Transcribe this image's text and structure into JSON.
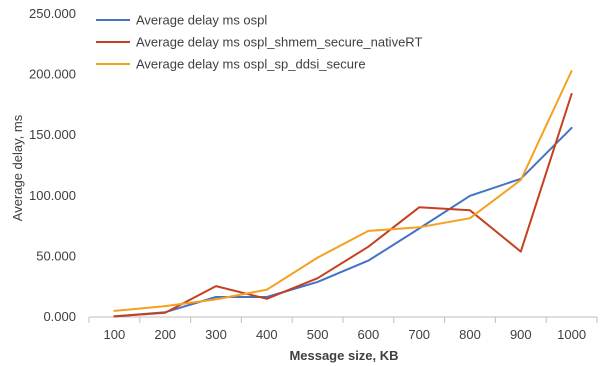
{
  "chart_data": {
    "type": "line",
    "title": "",
    "xlabel": "Message size, KB",
    "ylabel": "Average delay, ms",
    "categories": [
      "100",
      "200",
      "300",
      "400",
      "500",
      "600",
      "700",
      "800",
      "900",
      "1000"
    ],
    "y_ticks": [
      "0.000",
      "50.000",
      "100.000",
      "150.000",
      "200.000",
      "250.000"
    ],
    "ylim": [
      0,
      250000
    ],
    "grid": false,
    "legend_position": "top-left",
    "series": [
      {
        "name": "Average delay ms ospl",
        "color": "#4472C4",
        "values": [
          500,
          4000,
          16500,
          16500,
          29000,
          46500,
          73000,
          100000,
          114000,
          156000
        ]
      },
      {
        "name": "Average delay ms ospl_shmem_secure_nativeRT",
        "color": "#C5401F",
        "values": [
          500,
          3500,
          25500,
          15000,
          32000,
          58000,
          90500,
          88000,
          54000,
          184000
        ]
      },
      {
        "name": "Average delay ms ospl_sp_ddsi_secure",
        "color": "#F5A01F",
        "values": [
          5000,
          9000,
          14500,
          22500,
          49000,
          71000,
          74000,
          81500,
          113000,
          203000
        ]
      }
    ]
  }
}
